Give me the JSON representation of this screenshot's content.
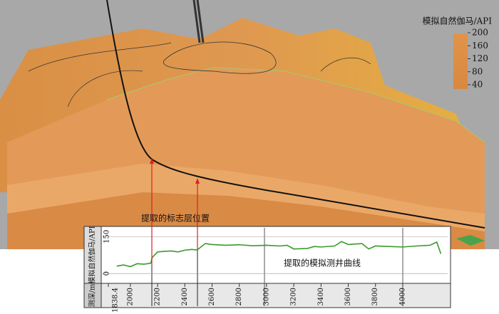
{
  "colorbar": {
    "title": "模拟自然伽马/API",
    "range": [
      40,
      200
    ],
    "ticks": [
      200,
      160,
      120,
      80,
      40
    ]
  },
  "annotations": {
    "marker": "提取的标志层位置",
    "curve": "提取的模拟测井曲线"
  },
  "chart_data": {
    "type": "line",
    "ylabel": "模拟自然伽马/API",
    "xlabel": "测深/m",
    "x": [
      1900,
      1950,
      2000,
      2050,
      2100,
      2150,
      2160,
      2200,
      2250,
      2300,
      2350,
      2400,
      2450,
      2490,
      2500,
      2550,
      2600,
      2700,
      2800,
      2900,
      3000,
      3100,
      3150,
      3200,
      3300,
      3350,
      3400,
      3500,
      3550,
      3600,
      3700,
      3750,
      3800,
      3900,
      4000,
      4100,
      4200,
      4250,
      4280
    ],
    "values": [
      30,
      35,
      28,
      40,
      38,
      42,
      65,
      88,
      90,
      92,
      88,
      95,
      98,
      96,
      100,
      122,
      118,
      115,
      117,
      113,
      115,
      112,
      115,
      100,
      102,
      110,
      108,
      112,
      130,
      118,
      122,
      100,
      112,
      110,
      108,
      112,
      115,
      128,
      80
    ],
    "color": "#3a9a2a",
    "xlim": [
      1838.4,
      4330
    ],
    "xticks": [
      1838.4,
      2000,
      2200,
      2400,
      2600,
      2800,
      3000,
      3200,
      3400,
      3600,
      3800,
      4000
    ],
    "ylim": [
      -40,
      180
    ],
    "yticks": [
      0,
      150
    ],
    "grid": true
  }
}
